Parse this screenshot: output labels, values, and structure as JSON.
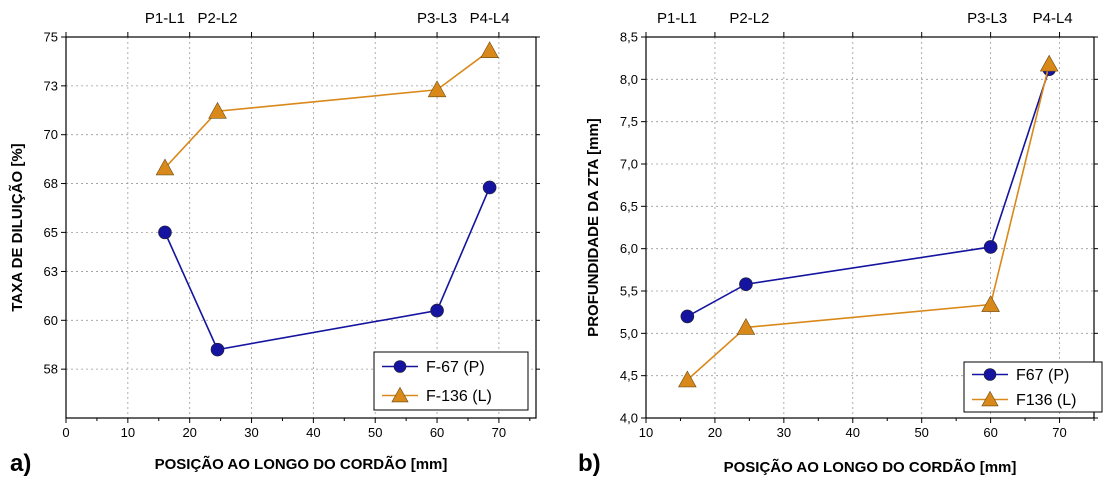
{
  "colors": {
    "series_p": "#1414a0",
    "series_l": "#d9891a",
    "axis": "#000000",
    "grid": "#9a9a9a"
  },
  "panels": [
    {
      "panel_label": "a)",
      "ylabel": "TAXA DE DILUIÇÃO [%]",
      "xlabel": "POSIÇÃO AO LONGO DO CORDÃO [mm]",
      "legend": [
        "F-67 (P)",
        "F-136 (L)"
      ]
    },
    {
      "panel_label": "b)",
      "ylabel": "PROFUNDIDADE DA ZTA [mm]",
      "xlabel": "POSIÇÃO AO LONGO DO CORDÃO [mm]",
      "legend": [
        "F67 (P)",
        "F136 (L)"
      ]
    }
  ],
  "chart_data": [
    {
      "type": "line",
      "title": "",
      "xlabel": "POSIÇÃO AO LONGO DO CORDÃO [mm]",
      "ylabel": "TAXA DE DILUIÇÃO [%]",
      "xlim": [
        0,
        76
      ],
      "ylim": [
        55.5,
        75
      ],
      "xticks": [
        0,
        10,
        20,
        30,
        40,
        50,
        60,
        70
      ],
      "xticklabels": [
        "0",
        "10",
        "20",
        "30",
        "40",
        "50",
        "60",
        "70"
      ],
      "yticks": [
        58,
        60.5,
        63,
        65,
        67.5,
        70,
        72.5,
        75
      ],
      "yticklabels": [
        "58",
        "60",
        "63",
        "65",
        "68",
        "70",
        "73",
        "75"
      ],
      "top_labels": [
        {
          "x": 16,
          "text": "P1-L1"
        },
        {
          "x": 24.5,
          "text": "P2-L2"
        },
        {
          "x": 60,
          "text": "P3-L3"
        },
        {
          "x": 68.5,
          "text": "P4-L4"
        }
      ],
      "grid": true,
      "legend_position": "bottom-right",
      "series": [
        {
          "name": "F-67 (P)",
          "marker": "circle",
          "x": [
            16,
            24.5,
            60,
            68.5
          ],
          "y": [
            65.0,
            59.0,
            61.0,
            67.3
          ]
        },
        {
          "name": "F-136 (L)",
          "marker": "triangle",
          "x": [
            16,
            24.5,
            60,
            68.5
          ],
          "y": [
            68.3,
            71.2,
            72.3,
            74.3
          ]
        }
      ]
    },
    {
      "type": "line",
      "title": "",
      "xlabel": "POSIÇÃO AO LONGO DO CORDÃO [mm]",
      "ylabel": "PROFUNDIDADE DA ZTA [mm]",
      "xlim": [
        10,
        75
      ],
      "ylim": [
        4.0,
        8.5
      ],
      "xticks": [
        10,
        20,
        30,
        40,
        50,
        60,
        70
      ],
      "xticklabels": [
        "10",
        "20",
        "30",
        "40",
        "50",
        "60",
        "70"
      ],
      "yticks": [
        4.0,
        4.5,
        5.0,
        5.5,
        6.0,
        6.5,
        7.0,
        7.5,
        8.0,
        8.5
      ],
      "yticklabels": [
        "4,0",
        "4,5",
        "5,0",
        "5,5",
        "6,0",
        "6,5",
        "7,0",
        "7,5",
        "8,0",
        "8,5"
      ],
      "top_labels": [
        {
          "x": 14.5,
          "text": "P1-L1"
        },
        {
          "x": 25,
          "text": "P2-L2"
        },
        {
          "x": 59.5,
          "text": "P3-L3"
        },
        {
          "x": 69,
          "text": "P4-L4"
        }
      ],
      "grid": true,
      "legend_position": "bottom-right",
      "series": [
        {
          "name": "F67 (P)",
          "marker": "circle",
          "x": [
            16,
            24.5,
            60,
            68.5
          ],
          "y": [
            5.2,
            5.58,
            6.02,
            8.12
          ]
        },
        {
          "name": "F136 (L)",
          "marker": "triangle",
          "x": [
            16,
            24.5,
            60,
            68.5
          ],
          "y": [
            4.45,
            5.07,
            5.34,
            8.18
          ]
        }
      ]
    }
  ]
}
